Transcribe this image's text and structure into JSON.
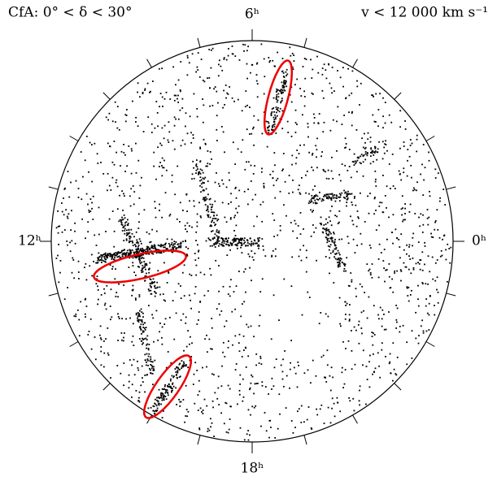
{
  "header": {
    "left": "CfA: 0° < δ < 30°",
    "right": "v < 12 000 km s⁻¹"
  },
  "hour_labels": [
    "6ʰ",
    "12ʰ",
    "0ʰ",
    "18ʰ"
  ]
}
